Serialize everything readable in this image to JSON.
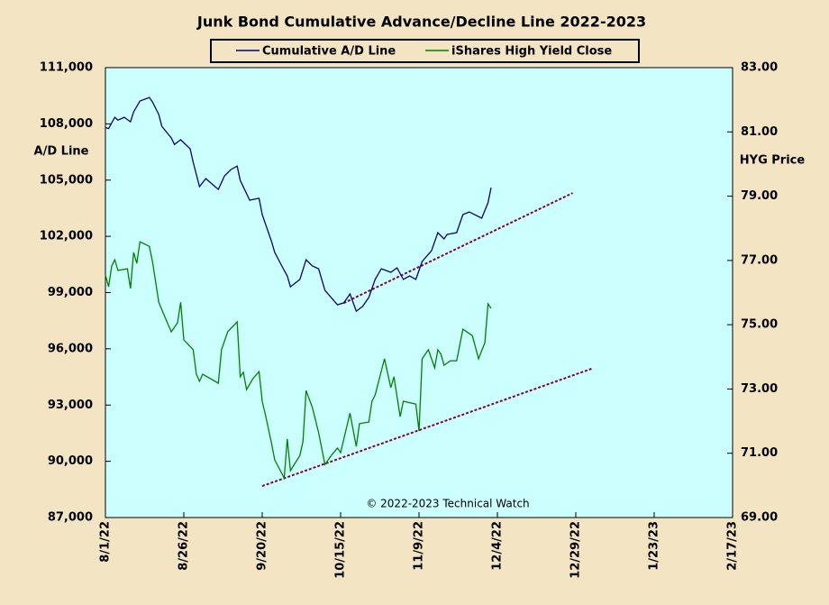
{
  "chart_data": {
    "type": "line",
    "title": "Junk Bond Cumulative  Advance/Decline Line 2022-2023",
    "y_label": "A/D Line",
    "y2_label": "HYG Price",
    "annotation": "© 2022-2023  Technical Watch",
    "background": "#ccffff",
    "xlim": [
      "2022-08-01",
      "2023-02-17"
    ],
    "xticks": [
      {
        "value": "2022-08-01",
        "label": "8/1/22"
      },
      {
        "value": "2022-08-26",
        "label": "8/26/22"
      },
      {
        "value": "2022-09-20",
        "label": "9/20/22"
      },
      {
        "value": "2022-10-15",
        "label": "10/15/22"
      },
      {
        "value": "2022-11-09",
        "label": "11/9/22"
      },
      {
        "value": "2022-12-04",
        "label": "12/4/22"
      },
      {
        "value": "2022-12-29",
        "label": "12/29/22"
      },
      {
        "value": "2023-01-23",
        "label": "1/23/23"
      },
      {
        "value": "2023-02-17",
        "label": "2/17/23"
      }
    ],
    "ylim": [
      87000,
      111000
    ],
    "yticks": [
      {
        "value": 87000,
        "label": "87,000"
      },
      {
        "value": 90000,
        "label": "90,000"
      },
      {
        "value": 93000,
        "label": "93,000"
      },
      {
        "value": 96000,
        "label": "96,000"
      },
      {
        "value": 99000,
        "label": "99,000"
      },
      {
        "value": 102000,
        "label": "102,000"
      },
      {
        "value": 105000,
        "label": "105,000"
      },
      {
        "value": 108000,
        "label": "108,000"
      },
      {
        "value": 111000,
        "label": "111,000"
      }
    ],
    "y2lim": [
      69,
      83
    ],
    "y2ticks": [
      {
        "value": 69,
        "label": "69.00"
      },
      {
        "value": 71,
        "label": "71.00"
      },
      {
        "value": 73,
        "label": "73.00"
      },
      {
        "value": 75,
        "label": "75.00"
      },
      {
        "value": 77,
        "label": "77.00"
      },
      {
        "value": 79,
        "label": "79.00"
      },
      {
        "value": 81,
        "label": "81.00"
      },
      {
        "value": 83,
        "label": "83.00"
      }
    ],
    "series": [
      {
        "name": "Cumulative A/D Line",
        "color": "#000080",
        "axis": "y",
        "x": [
          "2022-08-01",
          "2022-08-02",
          "2022-08-04",
          "2022-08-05",
          "2022-08-07",
          "2022-08-09",
          "2022-08-10",
          "2022-08-12",
          "2022-08-15",
          "2022-08-16",
          "2022-08-18",
          "2022-08-19",
          "2022-08-22",
          "2022-08-23",
          "2022-08-25",
          "2022-08-28",
          "2022-08-29",
          "2022-08-31",
          "2022-09-02",
          "2022-09-06",
          "2022-09-08",
          "2022-09-10",
          "2022-09-12",
          "2022-09-13",
          "2022-09-16",
          "2022-09-19",
          "2022-09-20",
          "2022-09-23",
          "2022-09-24",
          "2022-09-27",
          "2022-09-28",
          "2022-09-29",
          "2022-10-02",
          "2022-10-04",
          "2022-10-06",
          "2022-10-08",
          "2022-10-10",
          "2022-10-14",
          "2022-10-16",
          "2022-10-18",
          "2022-10-20",
          "2022-10-22",
          "2022-10-24",
          "2022-10-26",
          "2022-10-28",
          "2022-10-31",
          "2022-11-02",
          "2022-11-04",
          "2022-11-06",
          "2022-11-08",
          "2022-11-10",
          "2022-11-13",
          "2022-11-15",
          "2022-11-17",
          "2022-11-18",
          "2022-11-21",
          "2022-11-23",
          "2022-11-25",
          "2022-11-29",
          "2022-12-01",
          "2022-12-02"
        ],
        "values": [
          107800,
          107750,
          108350,
          108200,
          108350,
          108110,
          108640,
          109220,
          109410,
          109170,
          108500,
          107870,
          107250,
          106900,
          107150,
          106670,
          105950,
          104650,
          105080,
          104500,
          105230,
          105560,
          105750,
          104990,
          103930,
          104030,
          103160,
          101720,
          101140,
          100180,
          99890,
          99310,
          99700,
          100750,
          100420,
          100270,
          99120,
          98350,
          98450,
          98930,
          98010,
          98260,
          98740,
          99700,
          100270,
          100080,
          100320,
          99700,
          99890,
          99700,
          100660,
          101230,
          102200,
          101860,
          102100,
          102200,
          103160,
          103300,
          102970,
          103790,
          104600
        ]
      },
      {
        "name": "iShares High Yield Close",
        "color": "#008000",
        "axis": "y2",
        "x": [
          "2022-08-01",
          "2022-08-02",
          "2022-08-03",
          "2022-08-04",
          "2022-08-05",
          "2022-08-08",
          "2022-08-09",
          "2022-08-10",
          "2022-08-11",
          "2022-08-12",
          "2022-08-15",
          "2022-08-16",
          "2022-08-18",
          "2022-08-20",
          "2022-08-22",
          "2022-08-24",
          "2022-08-25",
          "2022-08-26",
          "2022-08-29",
          "2022-08-30",
          "2022-08-31",
          "2022-09-01",
          "2022-09-06",
          "2022-09-07",
          "2022-09-09",
          "2022-09-12",
          "2022-09-13",
          "2022-09-14",
          "2022-09-15",
          "2022-09-17",
          "2022-09-19",
          "2022-09-20",
          "2022-09-21",
          "2022-09-23",
          "2022-09-24",
          "2022-09-27",
          "2022-09-28",
          "2022-09-29",
          "2022-10-02",
          "2022-10-03",
          "2022-10-04",
          "2022-10-06",
          "2022-10-08",
          "2022-10-10",
          "2022-10-12",
          "2022-10-14",
          "2022-10-15",
          "2022-10-18",
          "2022-10-20",
          "2022-10-21",
          "2022-10-24",
          "2022-10-25",
          "2022-10-26",
          "2022-10-29",
          "2022-10-31",
          "2022-11-01",
          "2022-11-03",
          "2022-11-04",
          "2022-11-08",
          "2022-11-09",
          "2022-11-10",
          "2022-11-12",
          "2022-11-14",
          "2022-11-15",
          "2022-11-16",
          "2022-11-17",
          "2022-11-19",
          "2022-11-21",
          "2022-11-23",
          "2022-11-26",
          "2022-11-28",
          "2022-11-30",
          "2022-12-01",
          "2022-12-02"
        ],
        "values": [
          76.55,
          76.18,
          76.83,
          77.02,
          76.69,
          76.74,
          76.13,
          77.25,
          76.91,
          77.58,
          77.44,
          76.97,
          75.7,
          75.23,
          74.78,
          75.06,
          75.7,
          74.53,
          74.22,
          73.46,
          73.24,
          73.46,
          73.18,
          74.22,
          74.78,
          75.09,
          73.38,
          73.52,
          72.98,
          73.32,
          73.54,
          72.62,
          72.2,
          71.3,
          70.79,
          70.23,
          71.44,
          70.46,
          70.93,
          71.36,
          72.95,
          72.42,
          71.64,
          70.65,
          70.93,
          71.16,
          71.02,
          72.25,
          71.21,
          71.92,
          71.97,
          72.62,
          72.81,
          73.94,
          73.04,
          73.38,
          72.14,
          72.62,
          72.53,
          71.69,
          73.94,
          74.22,
          73.66,
          74.22,
          74.08,
          73.74,
          73.88,
          73.88,
          74.86,
          74.66,
          73.94,
          74.44,
          75.65,
          75.51
        ]
      }
    ],
    "trendlines": [
      {
        "color": "#800040",
        "axis": "y",
        "x": [
          "2022-10-16",
          "2022-12-28"
        ],
        "values": [
          98440,
          104310
        ]
      },
      {
        "color": "#800040",
        "axis": "y2",
        "x": [
          "2022-09-20",
          "2023-01-03"
        ],
        "values": [
          69.98,
          73.63
        ]
      }
    ]
  }
}
